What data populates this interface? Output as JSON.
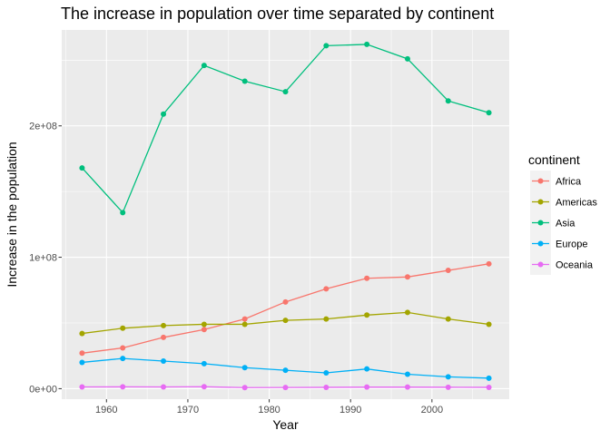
{
  "chart_data": {
    "type": "line",
    "title": "The increase in population over time separated by continent",
    "xlabel": "Year",
    "ylabel": "Increase in the population",
    "x": [
      1957,
      1962,
      1967,
      1972,
      1977,
      1982,
      1987,
      1992,
      1997,
      2002,
      2007
    ],
    "xlim": [
      1954.5,
      2009.5
    ],
    "ylim": [
      -8000000,
      273000000
    ],
    "x_ticks": [
      1960,
      1970,
      1980,
      1990,
      2000
    ],
    "x_tick_labels": [
      "1960",
      "1970",
      "1980",
      "1990",
      "2000"
    ],
    "y_ticks": [
      0,
      100000000,
      200000000
    ],
    "y_tick_labels": [
      "0e+00",
      "1e+08",
      "2e+08"
    ],
    "legend": {
      "title": "continent",
      "placement": "right"
    },
    "grid": true,
    "series": [
      {
        "name": "Africa",
        "color": "#F8766D",
        "values": [
          27000000,
          31000000,
          39000000,
          45000000,
          53000000,
          66000000,
          76000000,
          84000000,
          85000000,
          90000000,
          95000000
        ]
      },
      {
        "name": "Americas",
        "color": "#A3A500",
        "values": [
          42000000,
          46000000,
          48000000,
          49000000,
          49000000,
          52000000,
          53000000,
          56000000,
          58000000,
          53000000,
          49000000
        ]
      },
      {
        "name": "Asia",
        "color": "#00BF7D",
        "values": [
          168000000,
          134000000,
          209000000,
          246000000,
          234000000,
          226000000,
          261000000,
          262000000,
          251000000,
          219000000,
          210000000
        ]
      },
      {
        "name": "Europe",
        "color": "#00B0F6",
        "values": [
          20000000,
          23000000,
          21000000,
          19000000,
          16000000,
          14000000,
          12000000,
          15000000,
          11000000,
          9000000,
          8000000
        ]
      },
      {
        "name": "Oceania",
        "color": "#E76BF3",
        "values": [
          1300000,
          1400000,
          1300000,
          1500000,
          800000,
          900000,
          1000000,
          1200000,
          1200000,
          1100000,
          1000000
        ]
      }
    ]
  }
}
